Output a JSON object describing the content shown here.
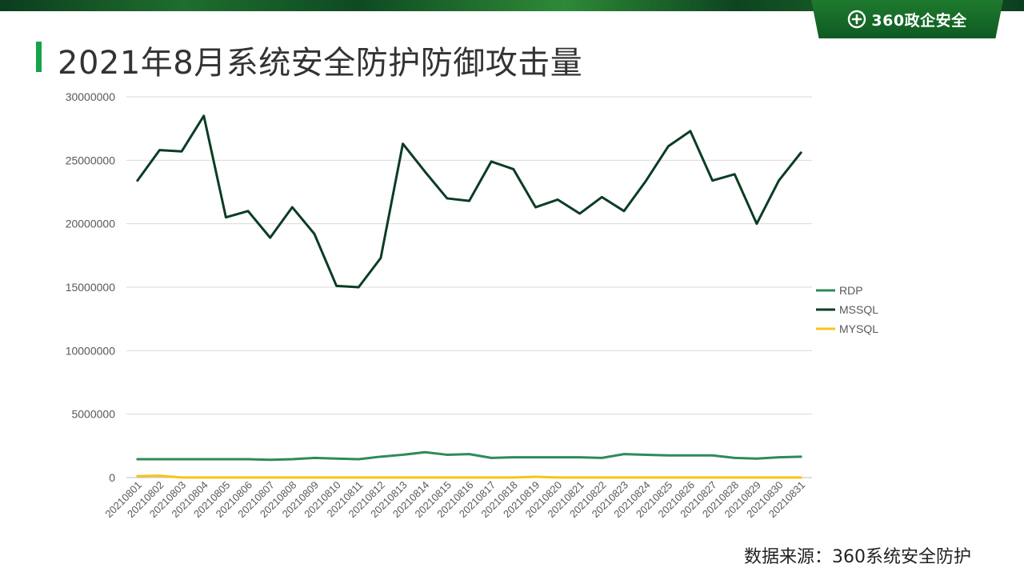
{
  "header": {
    "brand_name": "360政企安全",
    "brand_icon": "plus-circle-icon",
    "title": "2021年8月系统安全防护防御攻击量"
  },
  "footer": {
    "source": "数据来源：360系统安全防护"
  },
  "colors": {
    "banner": "#0f5a22",
    "accent": "#16a34a",
    "rdp": "#2e8b57",
    "mssql": "#0b3d24",
    "mysql": "#f5c518"
  },
  "chart_data": {
    "type": "line",
    "title": "",
    "xlabel": "",
    "ylabel": "",
    "ylim": [
      0,
      30000000
    ],
    "yticks": [
      0,
      5000000,
      10000000,
      15000000,
      20000000,
      25000000,
      30000000
    ],
    "grid": true,
    "legend_position": "right",
    "categories": [
      "20210801",
      "20210802",
      "20210803",
      "20210804",
      "20210805",
      "20210806",
      "20210807",
      "20210808",
      "20210809",
      "20210810",
      "20210811",
      "20210812",
      "20210813",
      "20210814",
      "20210815",
      "20210816",
      "20210817",
      "20210818",
      "20210819",
      "20210820",
      "20210821",
      "20210822",
      "20210823",
      "20210824",
      "20210825",
      "20210826",
      "20210827",
      "20210828",
      "20210829",
      "20210830",
      "20210831"
    ],
    "series": [
      {
        "name": "RDP",
        "color": "#2e8b57",
        "values": [
          1450000,
          1450000,
          1450000,
          1450000,
          1450000,
          1450000,
          1400000,
          1450000,
          1550000,
          1500000,
          1450000,
          1650000,
          1800000,
          2000000,
          1800000,
          1850000,
          1550000,
          1600000,
          1600000,
          1600000,
          1600000,
          1550000,
          1850000,
          1800000,
          1750000,
          1750000,
          1750000,
          1550000,
          1500000,
          1600000,
          1650000
        ]
      },
      {
        "name": "MSSQL",
        "color": "#0b3d24",
        "values": [
          23400000,
          25800000,
          25700000,
          28500000,
          20500000,
          21000000,
          18900000,
          21300000,
          19200000,
          15100000,
          15000000,
          17300000,
          26300000,
          24100000,
          22000000,
          21800000,
          24900000,
          24300000,
          21300000,
          21900000,
          20800000,
          22100000,
          21000000,
          23400000,
          26100000,
          27300000,
          23400000,
          23900000,
          20000000,
          23400000,
          25600000
        ]
      },
      {
        "name": "MYSQL",
        "color": "#f5c518",
        "values": [
          120000,
          150000,
          10000,
          10000,
          10000,
          10000,
          10000,
          10000,
          10000,
          10000,
          10000,
          10000,
          10000,
          10000,
          10000,
          10000,
          10000,
          10000,
          60000,
          10000,
          10000,
          10000,
          10000,
          10000,
          10000,
          10000,
          10000,
          10000,
          10000,
          10000,
          10000
        ]
      }
    ]
  }
}
